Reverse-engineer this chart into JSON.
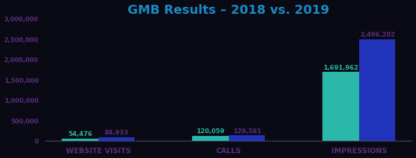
{
  "title": "GMB Results – 2018 vs. 2019",
  "categories": [
    "WEBSITE VISITS",
    "CALLS",
    "IMPRESSIONS"
  ],
  "values_2018": [
    54476,
    120059,
    1691962
  ],
  "values_2019": [
    84933,
    129581,
    2496202
  ],
  "labels_2018": [
    "54,476",
    "120,059",
    "1,691,962"
  ],
  "labels_2019": [
    "84,933",
    "129,581",
    "2,496,202"
  ],
  "color_2018": "#2ab8a8",
  "color_2019": "#2233bb",
  "title_color": "#1a8ac4",
  "ytick_color": "#5a2d7a",
  "label_color_2018": "#2ab8a8",
  "label_color_2019": "#5a2d7a",
  "xtick_color": "#5a2d7a",
  "ylim": [
    0,
    3000000
  ],
  "yticks": [
    0,
    500000,
    1000000,
    1500000,
    2000000,
    2500000,
    3000000
  ],
  "ytick_labels": [
    "0",
    "500,000",
    "1,000,000",
    "1,500,000",
    "2,000,000",
    "2,500,000",
    "3,000,000"
  ],
  "background_color": "#0a0a14",
  "bar_width": 0.28,
  "title_fontsize": 13,
  "label_fontsize": 6.5,
  "xtick_fontsize": 7.5,
  "ytick_fontsize": 6.5
}
